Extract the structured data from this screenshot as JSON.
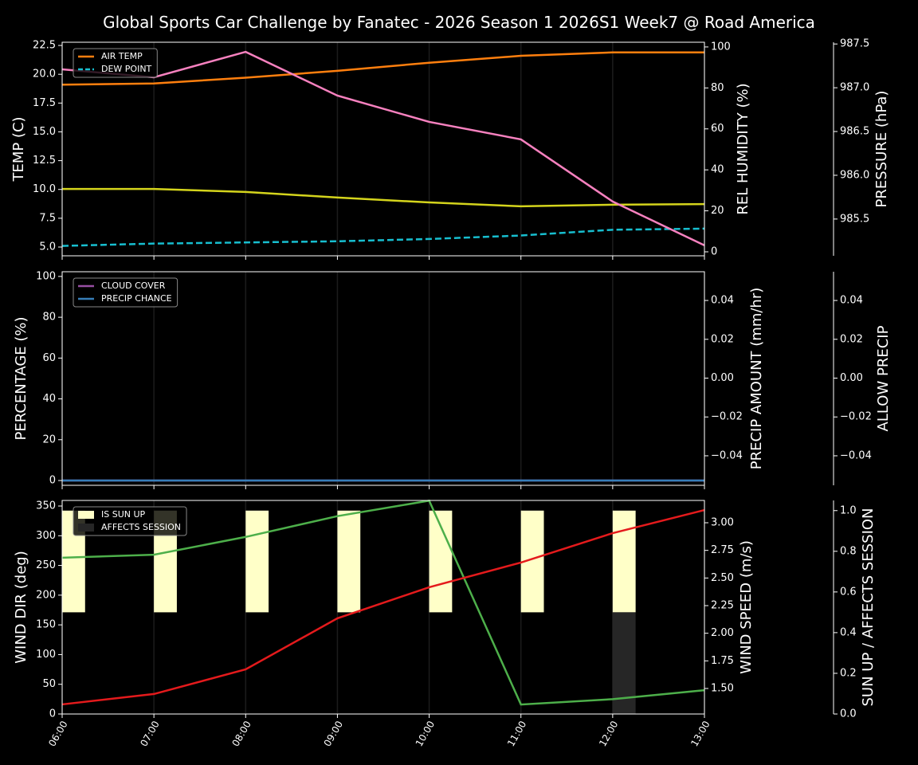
{
  "title": "Global Sports Car Challenge by Fanatec - 2026 Season 1 2026S1 Week7 @ Road America",
  "chart_data": [
    {
      "type": "line",
      "legend": "upper left",
      "xgrid": true,
      "ylabel": "TEMP (C)",
      "ylabel_color": "#ffffff",
      "ylim": [
        4.24,
        22.78
      ],
      "yticks": [
        {
          "value": 5,
          "label": "5.0"
        },
        7.5,
        {
          "value": 10,
          "label": "10.0"
        },
        12.5,
        {
          "value": 15,
          "label": "15.0"
        },
        17.5,
        {
          "value": 20,
          "label": "20.0"
        },
        22.5
      ],
      "y2label": "REL HUMIDITY (%)",
      "y2label_color": "#d4d41c",
      "y2lim": [
        -1.95,
        102.3
      ],
      "y2ticks": [
        0,
        20,
        40,
        60,
        80,
        100
      ],
      "y3label": "PRESSURE (hPa)",
      "y3label_color": "#f781bf",
      "y3lim": [
        985.08,
        987.52
      ],
      "y3ticks": [
        985.5,
        {
          "value": 986,
          "label": "986.0"
        },
        986.5,
        {
          "value": 987,
          "label": "987.0"
        },
        987.5
      ],
      "series": [
        {
          "name": "AIR TEMP",
          "color": "#ff7f0e",
          "axis": "y",
          "values": [
            19.1,
            19.2,
            19.7,
            20.3,
            21.0,
            21.6,
            21.9,
            21.9
          ]
        },
        {
          "name": "DEW POINT",
          "color": "#17becf",
          "axis": "y",
          "dashed": true,
          "values": [
            5.1,
            5.3,
            5.4,
            5.5,
            5.7,
            6.0,
            6.5,
            6.6
          ]
        },
        {
          "color": "#d4d41c",
          "axis": "y2",
          "in_legend": false,
          "values": [
            30.7,
            30.7,
            29.2,
            26.5,
            24.1,
            22.2,
            23.0,
            23.3
          ]
        },
        {
          "color": "#f781bf",
          "axis": "y3",
          "in_legend": false,
          "values": [
            987.21,
            987.12,
            987.41,
            986.91,
            986.61,
            986.41,
            985.7,
            985.2
          ]
        }
      ]
    },
    {
      "type": "line",
      "legend": "upper left",
      "xgrid": true,
      "ylabel": "PERCENTAGE (%)",
      "ylabel_color": "#ffffff",
      "ylim": [
        -2.34,
        102.3
      ],
      "yticks": [
        0,
        20,
        40,
        60,
        80,
        100
      ],
      "y2label": "PRECIP AMOUNT (mm/hr)",
      "y2label_color": "#a65628",
      "y2lim": [
        -0.0552,
        0.0548
      ],
      "y2ticks": [
        {
          "value": -0.04,
          "label": "−0.04"
        },
        {
          "value": -0.02,
          "label": "−0.02"
        },
        {
          "value": 0,
          "label": "0.00"
        },
        0.02,
        0.04
      ],
      "y3label": "ALLOW PRECIP",
      "y3label_color": "#ffffff",
      "y3lim": [
        -0.0552,
        0.0548
      ],
      "y3ticks": [
        {
          "value": -0.04,
          "label": "−0.04"
        },
        {
          "value": -0.02,
          "label": "−0.02"
        },
        {
          "value": 0,
          "label": "0.00"
        },
        0.02,
        0.04
      ],
      "series": [
        {
          "name": "CLOUD COVER",
          "color": "#984ea3",
          "axis": "y",
          "values": [
            0,
            0,
            0,
            0,
            0,
            0,
            0,
            0
          ]
        },
        {
          "name": "PRECIP CHANCE",
          "color": "#377eb8",
          "axis": "y",
          "values": [
            0,
            0,
            0,
            0,
            0,
            0,
            0,
            0
          ]
        }
      ]
    },
    {
      "type": "line",
      "legend": "upper left",
      "xgrid": true,
      "categories": [
        "06:00",
        "07:00",
        "08:00",
        "09:00",
        "10:00",
        "11:00",
        "12:00",
        "13:00"
      ],
      "ylabel": "WIND DIR (deg)",
      "ylabel_color": "#4daf4a",
      "ylim": [
        0,
        359.4
      ],
      "yticks": [
        0,
        50,
        100,
        150,
        200,
        250,
        300,
        350
      ],
      "y2label": "WIND SPEED (m/s)",
      "y2label_color": "#e41a1c",
      "y2lim": [
        1.269,
        3.202
      ],
      "y2ticks": [
        {
          "value": 1.5,
          "label": "1.50"
        },
        1.75,
        {
          "value": 2,
          "label": "2.00"
        },
        2.25,
        {
          "value": 2.5,
          "label": "2.50"
        },
        2.75,
        {
          "value": 3,
          "label": "3.00"
        }
      ],
      "y3label": "SUN UP / AFFECTS SESSION",
      "y3label_color": "#ffffff",
      "y3lim": [
        0,
        1.05
      ],
      "y3ticks": [
        {
          "value": 0,
          "label": "0.0"
        },
        0.2,
        0.4,
        0.6,
        0.8,
        {
          "value": 1,
          "label": "1.0"
        }
      ],
      "series": [
        {
          "name": "IS SUN UP",
          "type": "bar",
          "color": "#ffffc8",
          "axis": "y3",
          "base": 0.5,
          "values": [
            0.5,
            0.5,
            0.5,
            0.5,
            0.5,
            0.5,
            0.5,
            0
          ]
        },
        {
          "name": "AFFECTS SESSION",
          "type": "bar",
          "color": "#262626",
          "axis": "y3",
          "base": 0,
          "values": [
            0,
            0,
            0,
            0,
            0,
            0,
            0.5,
            0
          ]
        },
        {
          "color": "#4daf4a",
          "axis": "y",
          "in_legend": false,
          "values": [
            263,
            268,
            298,
            333,
            359,
            16,
            25,
            40
          ]
        },
        {
          "color": "#e41a1c",
          "axis": "y2",
          "in_legend": false,
          "values": [
            1.356,
            1.45,
            1.673,
            2.135,
            2.416,
            2.64,
            2.906,
            3.115
          ]
        }
      ]
    }
  ]
}
